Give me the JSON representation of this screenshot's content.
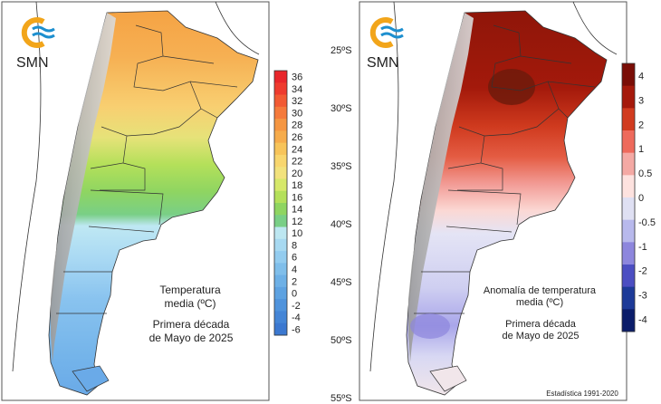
{
  "logo": {
    "text": "SMN",
    "orange": "#f2a51a",
    "blue": "#1d8fcf"
  },
  "left_panel": {
    "title_line1": "Temperatura",
    "title_line2": "media (ºC)",
    "period_line1": "Primera década",
    "period_line2": "de Mayo de 2025",
    "colorbar": {
      "labels": [
        "36",
        "34",
        "32",
        "30",
        "28",
        "26",
        "24",
        "22",
        "20",
        "18",
        "16",
        "14",
        "12",
        "10",
        "8",
        "6",
        "4",
        "2",
        "0",
        "-2",
        "-4",
        "-6"
      ],
      "colors": [
        "#e8262b",
        "#ee3b2e",
        "#f25a33",
        "#f57a3b",
        "#f59642",
        "#f6ac4c",
        "#f7c45a",
        "#f8d66e",
        "#f2e27c",
        "#d6e86a",
        "#b4e05a",
        "#8fd561",
        "#79cf86",
        "#bde7f1",
        "#a7d9f1",
        "#93ccef",
        "#7fbeea",
        "#6db0e6",
        "#5da2e1",
        "#4f93dc",
        "#4485d6",
        "#3b78d0"
      ]
    }
  },
  "right_panel": {
    "title_line1": "Anomalía de temperatura",
    "title_line2": "media (ºC)",
    "period_line1": "Primera década",
    "period_line2": "de Mayo de 2025",
    "footer": "Estadística 1991-2020",
    "lat_labels": [
      "25ºS",
      "30ºS",
      "35ºS",
      "40ºS",
      "45ºS",
      "50ºS",
      "55ºS"
    ],
    "colorbar": {
      "labels": [
        "4",
        "3",
        "2",
        "1",
        "0.5",
        "0",
        "-0.5",
        "-1",
        "-2",
        "-3",
        "-4"
      ],
      "colors": [
        "#7a0d06",
        "#a5190b",
        "#d13b1f",
        "#ee6a5c",
        "#f4a9a4",
        "#fde2df",
        "#dfe0f3",
        "#b8b9ec",
        "#8d86dd",
        "#4c4ec2",
        "#1d3a98",
        "#0b1d6a"
      ]
    }
  }
}
